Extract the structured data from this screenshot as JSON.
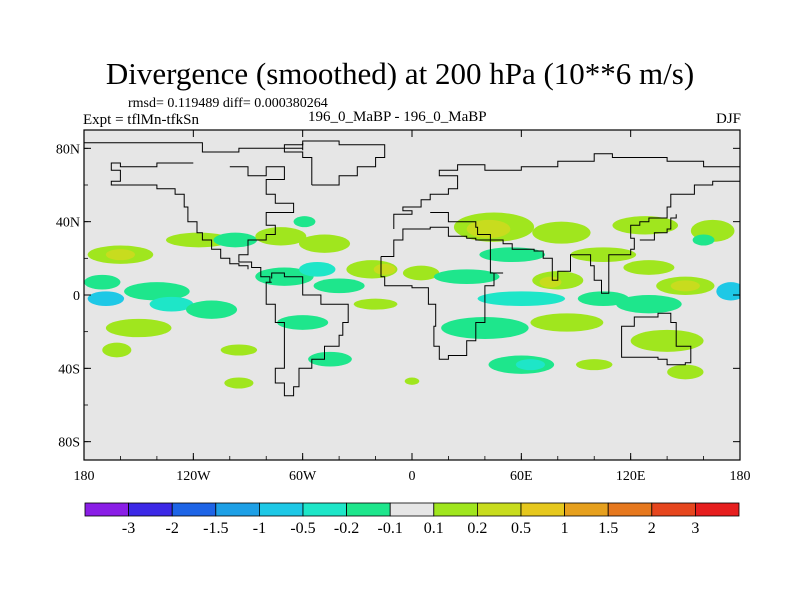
{
  "chart_data": {
    "type": "heatmap",
    "title": "Divergence (smoothed) at 200 hPa (10**6 m/s)",
    "stats": "rmsd= 0.119489 diff= 0.000380264",
    "experiment": "Expt = tflMn-tfkSn",
    "case": "196_0_MaBP - 196_0_MaBP",
    "season": "DJF",
    "x_range": [
      -180,
      180
    ],
    "y_range": [
      -90,
      90
    ],
    "x_ticks": [
      {
        "value": -180,
        "label": "180"
      },
      {
        "value": -120,
        "label": "120W"
      },
      {
        "value": -60,
        "label": "60W"
      },
      {
        "value": 0,
        "label": "0"
      },
      {
        "value": 60,
        "label": "60E"
      },
      {
        "value": 120,
        "label": "120E"
      },
      {
        "value": 180,
        "label": "180"
      }
    ],
    "y_ticks": [
      {
        "value": 80,
        "label": "80N"
      },
      {
        "value": 40,
        "label": "40N"
      },
      {
        "value": 0,
        "label": "0"
      },
      {
        "value": -40,
        "label": "40S"
      },
      {
        "value": -80,
        "label": "80S"
      }
    ],
    "background_color": "#e6e6e6",
    "colorbar": {
      "colors": [
        "#8a1ee6",
        "#3c28e6",
        "#1e64e6",
        "#1ea0e6",
        "#1ec8e6",
        "#1ee6c8",
        "#1ee68c",
        "#e6e6e6",
        "#a0e61e",
        "#c8dc1e",
        "#e6c81e",
        "#e6a01e",
        "#e6781e",
        "#e6461e",
        "#e61e1e"
      ],
      "labels": [
        "-3",
        "-2",
        "-1.5",
        "-1",
        "-0.5",
        "-0.2",
        "-0.1",
        "0.1",
        "0.2",
        "0.5",
        "1",
        "1.5",
        "2",
        "3"
      ]
    },
    "blobs": [
      {
        "lon": -160,
        "lat": 22,
        "rlon": 18,
        "rlat": 5,
        "color": "#a0e61e"
      },
      {
        "lon": -160,
        "lat": 22,
        "rlon": 8,
        "rlat": 3,
        "color": "#c8dc1e"
      },
      {
        "lon": -117,
        "lat": 30,
        "rlon": 18,
        "rlat": 4,
        "color": "#a0e61e"
      },
      {
        "lon": -97,
        "lat": 30,
        "rlon": 12,
        "rlat": 4,
        "color": "#1ee68c"
      },
      {
        "lon": -72,
        "lat": 32,
        "rlon": 14,
        "rlat": 5,
        "color": "#a0e61e"
      },
      {
        "lon": -48,
        "lat": 28,
        "rlon": 14,
        "rlat": 5,
        "color": "#a0e61e"
      },
      {
        "lon": -59,
        "lat": 40,
        "rlon": 6,
        "rlat": 3,
        "color": "#1ee68c"
      },
      {
        "lon": -170,
        "lat": 7,
        "rlon": 10,
        "rlat": 4,
        "color": "#1ee68c"
      },
      {
        "lon": -140,
        "lat": 2,
        "rlon": 18,
        "rlat": 5,
        "color": "#1ee68c"
      },
      {
        "lon": -168,
        "lat": -2,
        "rlon": 10,
        "rlat": 4,
        "color": "#1ec8e6"
      },
      {
        "lon": -132,
        "lat": -5,
        "rlon": 12,
        "rlat": 4,
        "color": "#1ee6c8"
      },
      {
        "lon": -110,
        "lat": -8,
        "rlon": 14,
        "rlat": 5,
        "color": "#1ee68c"
      },
      {
        "lon": -70,
        "lat": 10,
        "rlon": 16,
        "rlat": 5,
        "color": "#1ee68c"
      },
      {
        "lon": -52,
        "lat": 14,
        "rlon": 10,
        "rlat": 4,
        "color": "#1ee6c8"
      },
      {
        "lon": -22,
        "lat": 14,
        "rlon": 14,
        "rlat": 5,
        "color": "#a0e61e"
      },
      {
        "lon": -15,
        "lat": 14,
        "rlon": 6,
        "rlat": 3,
        "color": "#c8dc1e"
      },
      {
        "lon": 5,
        "lat": 12,
        "rlon": 10,
        "rlat": 4,
        "color": "#a0e61e"
      },
      {
        "lon": -60,
        "lat": -15,
        "rlon": 14,
        "rlat": 4,
        "color": "#1ee68c"
      },
      {
        "lon": -40,
        "lat": 5,
        "rlon": 14,
        "rlat": 4,
        "color": "#1ee68c"
      },
      {
        "lon": -20,
        "lat": -5,
        "rlon": 12,
        "rlat": 3,
        "color": "#a0e61e"
      },
      {
        "lon": -150,
        "lat": -18,
        "rlon": 18,
        "rlat": 5,
        "color": "#a0e61e"
      },
      {
        "lon": -162,
        "lat": -30,
        "rlon": 8,
        "rlat": 4,
        "color": "#a0e61e"
      },
      {
        "lon": -95,
        "lat": -30,
        "rlon": 10,
        "rlat": 3,
        "color": "#a0e61e"
      },
      {
        "lon": -95,
        "lat": -48,
        "rlon": 8,
        "rlat": 3,
        "color": "#a0e61e"
      },
      {
        "lon": -45,
        "lat": -35,
        "rlon": 12,
        "rlat": 4,
        "color": "#1ee68c"
      },
      {
        "lon": 45,
        "lat": 37,
        "rlon": 22,
        "rlat": 8,
        "color": "#a0e61e"
      },
      {
        "lon": 42,
        "lat": 36,
        "rlon": 12,
        "rlat": 5,
        "color": "#c8dc1e"
      },
      {
        "lon": 82,
        "lat": 34,
        "rlon": 16,
        "rlat": 6,
        "color": "#a0e61e"
      },
      {
        "lon": 128,
        "lat": 38,
        "rlon": 18,
        "rlat": 5,
        "color": "#a0e61e"
      },
      {
        "lon": 165,
        "lat": 35,
        "rlon": 12,
        "rlat": 6,
        "color": "#a0e61e"
      },
      {
        "lon": 160,
        "lat": 30,
        "rlon": 6,
        "rlat": 3,
        "color": "#1ee68c"
      },
      {
        "lon": 55,
        "lat": 22,
        "rlon": 18,
        "rlat": 4,
        "color": "#1ee68c"
      },
      {
        "lon": 105,
        "lat": 22,
        "rlon": 18,
        "rlat": 4,
        "color": "#a0e61e"
      },
      {
        "lon": 130,
        "lat": 15,
        "rlon": 14,
        "rlat": 4,
        "color": "#a0e61e"
      },
      {
        "lon": 30,
        "lat": 10,
        "rlon": 18,
        "rlat": 4,
        "color": "#1ee68c"
      },
      {
        "lon": 80,
        "lat": 8,
        "rlon": 14,
        "rlat": 5,
        "color": "#a0e61e"
      },
      {
        "lon": 76,
        "lat": 7,
        "rlon": 6,
        "rlat": 3,
        "color": "#c8dc1e"
      },
      {
        "lon": 150,
        "lat": 5,
        "rlon": 16,
        "rlat": 5,
        "color": "#a0e61e"
      },
      {
        "lon": 150,
        "lat": 5,
        "rlon": 8,
        "rlat": 3,
        "color": "#c8dc1e"
      },
      {
        "lon": 175,
        "lat": 2,
        "rlon": 8,
        "rlat": 5,
        "color": "#1ec8e6"
      },
      {
        "lon": 60,
        "lat": -2,
        "rlon": 24,
        "rlat": 4,
        "color": "#1ee6c8"
      },
      {
        "lon": 105,
        "lat": -2,
        "rlon": 14,
        "rlat": 4,
        "color": "#1ee68c"
      },
      {
        "lon": 130,
        "lat": -5,
        "rlon": 18,
        "rlat": 5,
        "color": "#1ee68c"
      },
      {
        "lon": 40,
        "lat": -18,
        "rlon": 24,
        "rlat": 6,
        "color": "#1ee68c"
      },
      {
        "lon": 85,
        "lat": -15,
        "rlon": 20,
        "rlat": 5,
        "color": "#a0e61e"
      },
      {
        "lon": 140,
        "lat": -25,
        "rlon": 20,
        "rlat": 6,
        "color": "#a0e61e"
      },
      {
        "lon": 60,
        "lat": -38,
        "rlon": 18,
        "rlat": 5,
        "color": "#1ee68c"
      },
      {
        "lon": 65,
        "lat": -38,
        "rlon": 8,
        "rlat": 3,
        "color": "#1ee6c8"
      },
      {
        "lon": 100,
        "lat": -38,
        "rlon": 10,
        "rlat": 3,
        "color": "#a0e61e"
      },
      {
        "lon": 150,
        "lat": -42,
        "rlon": 10,
        "rlat": 4,
        "color": "#a0e61e"
      },
      {
        "lon": 0,
        "lat": -47,
        "rlon": 4,
        "rlat": 2,
        "color": "#a0e61e"
      }
    ],
    "coastlines": [
      [
        [
          -180,
          83
        ],
        [
          -115,
          83
        ],
        [
          -115,
          78
        ],
        [
          -95,
          78
        ],
        [
          -95,
          80
        ],
        [
          -70,
          80
        ],
        [
          -60,
          83
        ],
        [
          -60,
          79
        ]
      ],
      [
        [
          -100,
          70
        ],
        [
          -90,
          70
        ],
        [
          -90,
          65
        ],
        [
          -80,
          65
        ],
        [
          -80,
          70
        ],
        [
          -70,
          70
        ],
        [
          -70,
          63
        ],
        [
          -80,
          63
        ],
        [
          -80,
          55
        ],
        [
          -75,
          55
        ],
        [
          -75,
          50
        ],
        [
          -65,
          50
        ],
        [
          -65,
          45
        ],
        [
          -80,
          45
        ],
        [
          -80,
          38
        ],
        [
          -75,
          38
        ],
        [
          -75,
          33
        ],
        [
          -80,
          33
        ],
        [
          -80,
          30
        ],
        [
          -90,
          30
        ],
        [
          -90,
          22
        ],
        [
          -95,
          22
        ],
        [
          -95,
          18
        ],
        [
          -88,
          18
        ],
        [
          -88,
          15
        ],
        [
          -83,
          15
        ],
        [
          -83,
          10
        ],
        [
          -78,
          10
        ],
        [
          -78,
          7
        ],
        [
          -77,
          7
        ]
      ],
      [
        [
          -120,
          72
        ],
        [
          -140,
          70
        ],
        [
          -160,
          72
        ],
        [
          -165,
          68
        ],
        [
          -160,
          62
        ],
        [
          -165,
          60
        ],
        [
          -150,
          60
        ],
        [
          -140,
          58
        ],
        [
          -130,
          55
        ],
        [
          -125,
          48
        ],
        [
          -123,
          40
        ],
        [
          -118,
          34
        ],
        [
          -115,
          30
        ],
        [
          -110,
          25
        ],
        [
          -105,
          20
        ],
        [
          -100,
          17
        ],
        [
          -95,
          16
        ],
        [
          -90,
          14
        ]
      ],
      [
        [
          -78,
          7
        ],
        [
          -80,
          0
        ],
        [
          -80,
          -5
        ],
        [
          -75,
          -15
        ],
        [
          -70,
          -20
        ],
        [
          -70,
          -40
        ],
        [
          -75,
          -48
        ],
        [
          -70,
          -55
        ],
        [
          -65,
          -55
        ],
        [
          -65,
          -50
        ],
        [
          -62,
          -40
        ],
        [
          -55,
          -35
        ],
        [
          -48,
          -28
        ],
        [
          -40,
          -22
        ],
        [
          -38,
          -15
        ],
        [
          -35,
          -5
        ],
        [
          -50,
          0
        ],
        [
          -60,
          10
        ],
        [
          -70,
          12
        ],
        [
          -77,
          9
        ]
      ],
      [
        [
          -55,
          60
        ],
        [
          -45,
          60
        ],
        [
          -40,
          65
        ],
        [
          -30,
          70
        ],
        [
          -20,
          75
        ],
        [
          -15,
          82
        ],
        [
          -40,
          84
        ],
        [
          -60,
          82
        ],
        [
          -70,
          78
        ],
        [
          -60,
          75
        ],
        [
          -55,
          70
        ],
        [
          -55,
          60
        ]
      ],
      [
        [
          -17,
          21
        ],
        [
          -10,
          30
        ],
        [
          -5,
          36
        ],
        [
          10,
          37
        ],
        [
          20,
          32
        ],
        [
          30,
          31
        ],
        [
          35,
          30
        ],
        [
          43,
          12
        ],
        [
          50,
          12
        ],
        [
          45,
          5
        ],
        [
          40,
          -5
        ],
        [
          40,
          -15
        ],
        [
          35,
          -25
        ],
        [
          30,
          -33
        ],
        [
          20,
          -35
        ],
        [
          15,
          -28
        ],
        [
          12,
          -17
        ],
        [
          13,
          -5
        ],
        [
          9,
          4
        ],
        [
          0,
          5
        ],
        [
          -8,
          5
        ],
        [
          -15,
          10
        ],
        [
          -17,
          15
        ],
        [
          -17,
          21
        ]
      ],
      [
        [
          -10,
          36
        ],
        [
          -10,
          44
        ],
        [
          0,
          46
        ],
        [
          -5,
          48
        ],
        [
          5,
          52
        ],
        [
          10,
          55
        ],
        [
          20,
          58
        ],
        [
          25,
          65
        ],
        [
          15,
          68
        ],
        [
          25,
          71
        ],
        [
          40,
          68
        ],
        [
          60,
          70
        ],
        [
          80,
          73
        ],
        [
          100,
          77
        ],
        [
          110,
          75
        ],
        [
          140,
          73
        ],
        [
          160,
          70
        ],
        [
          180,
          68
        ]
      ],
      [
        [
          10,
          45
        ],
        [
          20,
          40
        ],
        [
          28,
          40
        ],
        [
          35,
          37
        ],
        [
          36,
          33
        ],
        [
          43,
          30
        ],
        [
          50,
          28
        ],
        [
          55,
          25
        ],
        [
          60,
          25
        ],
        [
          67,
          24
        ],
        [
          72,
          20
        ],
        [
          77,
          8
        ],
        [
          80,
          13
        ],
        [
          87,
          22
        ],
        [
          92,
          22
        ],
        [
          98,
          16
        ],
        [
          100,
          8
        ],
        [
          104,
          1
        ],
        [
          108,
          12
        ],
        [
          108,
          22
        ],
        [
          120,
          25
        ],
        [
          122,
          31
        ],
        [
          120,
          38
        ],
        [
          125,
          40
        ],
        [
          130,
          42
        ],
        [
          140,
          48
        ],
        [
          142,
          55
        ],
        [
          155,
          60
        ],
        [
          160,
          60
        ],
        [
          165,
          62
        ],
        [
          180,
          66
        ]
      ],
      [
        [
          115,
          -22
        ],
        [
          115,
          -34
        ],
        [
          125,
          -34
        ],
        [
          135,
          -35
        ],
        [
          140,
          -38
        ],
        [
          150,
          -37
        ],
        [
          153,
          -28
        ],
        [
          145,
          -15
        ],
        [
          142,
          -10
        ],
        [
          135,
          -12
        ],
        [
          130,
          -12
        ],
        [
          122,
          -17
        ],
        [
          115,
          -22
        ]
      ],
      [
        [
          125,
          30
        ],
        [
          133,
          34
        ],
        [
          140,
          36
        ],
        [
          142,
          42
        ],
        [
          145,
          44
        ]
      ]
    ]
  }
}
